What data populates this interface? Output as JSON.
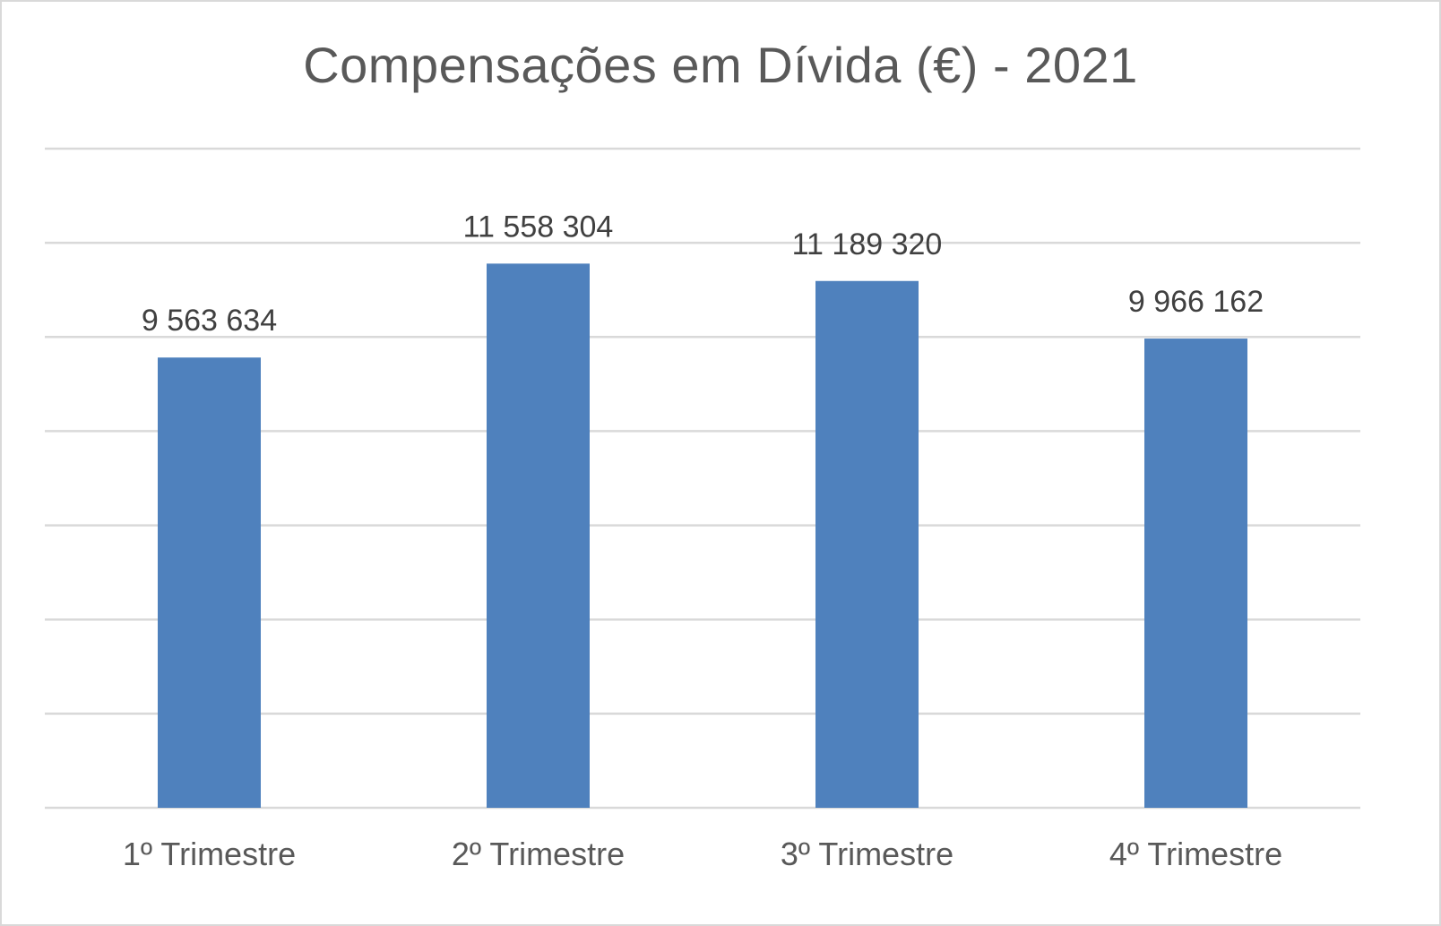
{
  "chart_data": {
    "type": "bar",
    "title": "Compensações em Dívida (€) - 2021",
    "categories": [
      "1º Trimestre",
      "2º Trimestre",
      "3º Trimestre",
      "4º Trimestre"
    ],
    "values": [
      9563634,
      11558304,
      11189320,
      9966162
    ],
    "data_labels": [
      "9 563 634",
      "11 558 304",
      "11 189 320",
      "9 966 162"
    ],
    "xlabel": "",
    "ylabel": "",
    "ylim": [
      0,
      14000000
    ],
    "y_gridline_step": 2000000,
    "grid": true,
    "legend": "none",
    "colors": {
      "bar": "#4f81bd",
      "gridline": "#d9d9d9",
      "title": "#595959",
      "data_label": "#404040",
      "tick_label": "#595959"
    }
  }
}
